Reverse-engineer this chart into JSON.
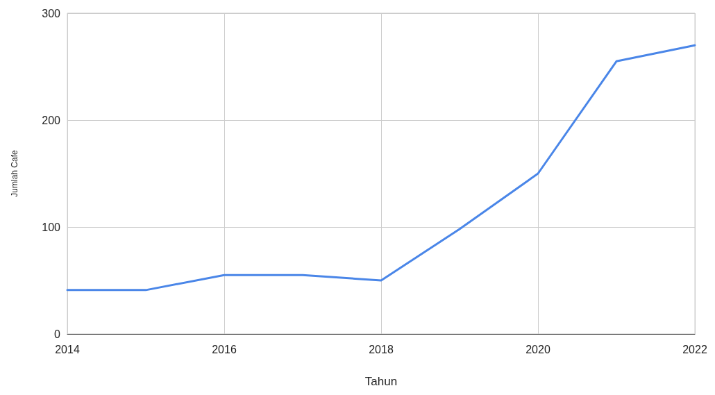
{
  "chart_data": {
    "type": "line",
    "xlabel": "Tahun",
    "ylabel": "Jumlah Cafe",
    "x": [
      2014,
      2015,
      2016,
      2017,
      2018,
      2019,
      2020,
      2021,
      2022
    ],
    "series": [
      {
        "color": "#4a86e8",
        "values": [
          41,
          41,
          55,
          55,
          50,
          98,
          150,
          255,
          270
        ]
      }
    ],
    "xlim": [
      2014,
      2022
    ],
    "xticks": [
      2014,
      2016,
      2018,
      2020,
      2022
    ],
    "ylim": [
      0,
      300
    ],
    "yticks": [
      0,
      100,
      200,
      300
    ],
    "grid": true,
    "marker": "none",
    "line_style": "solid"
  }
}
